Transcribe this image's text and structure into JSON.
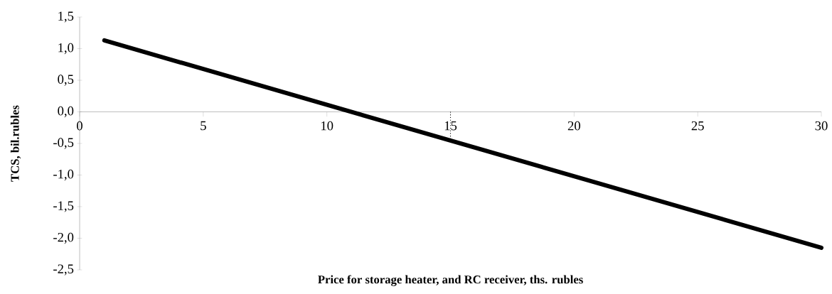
{
  "chart_data": {
    "type": "line",
    "xlabel": "Price  for storage heater, and  RC receiver, ths. rubles",
    "ylabel": "TCS, bil.rubles",
    "xlim": [
      0,
      30
    ],
    "ylim": [
      -2.5,
      1.5
    ],
    "xticks": [
      0,
      5,
      10,
      15,
      20,
      25,
      30
    ],
    "yticks": [
      {
        "value": -2.5,
        "label": "-2,5"
      },
      {
        "value": -2.0,
        "label": "-2,0"
      },
      {
        "value": -1.5,
        "label": "-1,5"
      },
      {
        "value": -1.0,
        "label": "-1,0"
      },
      {
        "value": -0.5,
        "label": "-0,5"
      },
      {
        "value": 0.0,
        "label": "0,0"
      },
      {
        "value": 0.5,
        "label": "0,5"
      },
      {
        "value": 1.0,
        "label": "1,0"
      },
      {
        "value": 1.5,
        "label": "1,5"
      }
    ],
    "ref_lines": [
      {
        "axis": "x",
        "value": 15,
        "line_style": "dotted",
        "color": "#000000"
      }
    ],
    "series": [
      {
        "color": "#000000",
        "x": [
          1,
          30
        ],
        "values": [
          1.13,
          -2.15
        ]
      }
    ]
  }
}
